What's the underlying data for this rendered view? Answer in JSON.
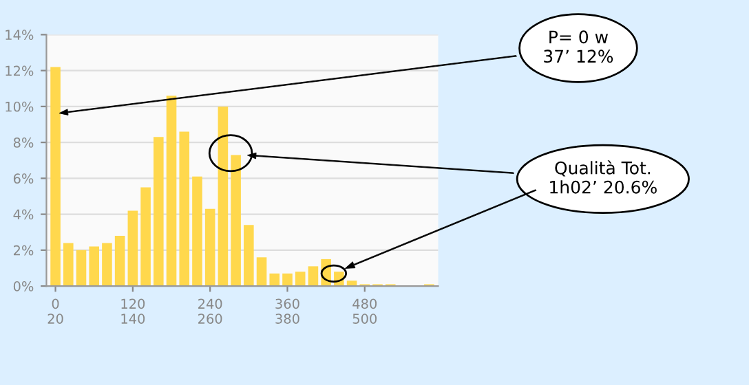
{
  "chart_data": {
    "type": "bar",
    "categories": [
      "0\n20",
      null,
      null,
      null,
      null,
      null,
      "120\n140",
      null,
      null,
      null,
      null,
      null,
      "240\n260",
      null,
      null,
      null,
      null,
      null,
      "360\n380",
      null,
      null,
      null,
      null,
      null,
      "480\n500",
      null,
      null,
      null,
      null,
      null
    ],
    "values": [
      12.2,
      2.4,
      2.0,
      2.2,
      2.4,
      2.8,
      4.2,
      5.5,
      8.3,
      10.6,
      8.6,
      6.1,
      4.3,
      10.0,
      7.3,
      3.4,
      1.6,
      0.7,
      0.7,
      0.8,
      1.1,
      1.5,
      0.8,
      0.3,
      0.1,
      0.1,
      0.1,
      0,
      0,
      0.1
    ],
    "color": "#ffd84d",
    "ylim": [
      0,
      14
    ],
    "yticks": [
      {
        "value": 0,
        "label": "0%"
      },
      {
        "value": 2,
        "label": "2%"
      },
      {
        "value": 4,
        "label": "4%"
      },
      {
        "value": 6,
        "label": "6%"
      },
      {
        "value": 8,
        "label": "8%"
      },
      {
        "value": 10,
        "label": "10%"
      },
      {
        "value": 12,
        "label": "12%"
      },
      {
        "value": 14,
        "label": "14%"
      }
    ],
    "grid": "y",
    "annotations": [
      "P= 0 w\n37’ 12%",
      "Qualità Tot.\n1h02’ 20.6%"
    ]
  }
}
